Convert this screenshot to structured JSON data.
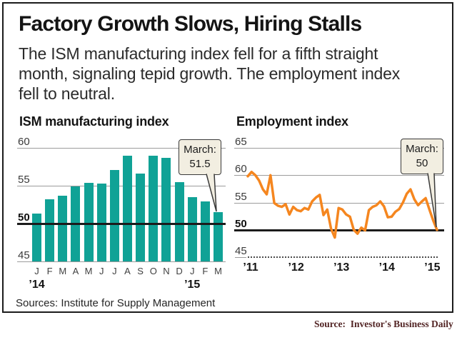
{
  "header": {
    "title": "Factory Growth Slows, Hiring Stalls",
    "subtitle": "The ISM manufacturing index fell for a fifth straight\nmonth, signaling tepid growth. The employment index\nfell to neutral."
  },
  "chart_data": [
    {
      "type": "bar",
      "title": "ISM manufacturing index",
      "categories": [
        "J",
        "F",
        "M",
        "A",
        "M",
        "J",
        "J",
        "A",
        "S",
        "O",
        "N",
        "D",
        "J",
        "F",
        "M"
      ],
      "category_years": [
        {
          "text": "’14",
          "month_index": 0
        },
        {
          "text": "’15",
          "month_index": 12
        }
      ],
      "values": [
        51.3,
        53.2,
        53.7,
        54.9,
        55.4,
        55.3,
        57.1,
        59.0,
        56.6,
        59.0,
        58.7,
        55.5,
        53.5,
        52.9,
        51.5
      ],
      "x_range": "Jan 2014 - Mar 2015",
      "ylim": [
        45,
        60
      ],
      "yticks": [
        60,
        55,
        50,
        45
      ],
      "bold_gridline": 50,
      "grid": "on",
      "annotation": {
        "label": "March:",
        "value": "51.5",
        "points_to": "Mar 2015 bar"
      },
      "color": "#10a296"
    },
    {
      "type": "line",
      "title": "Employment index",
      "x_year_ticks": [
        "’11",
        "’12",
        "’13",
        "’14",
        "’15"
      ],
      "x_range": "Jan 2011 - Mar 2015, monthly",
      "values": [
        59.8,
        60.6,
        60.0,
        59.0,
        57.4,
        56.5,
        60.0,
        54.9,
        54.4,
        54.2,
        54.7,
        52.8,
        54.2,
        53.6,
        53.4,
        54.0,
        53.7,
        55.2,
        55.9,
        56.4,
        52.7,
        53.7,
        50.2,
        48.6,
        54.0,
        53.7,
        52.8,
        52.4,
        50.0,
        49.3,
        50.4,
        49.9,
        53.6,
        54.2,
        54.5,
        55.2,
        54.3,
        52.3,
        52.4,
        53.3,
        53.8,
        55.0,
        56.6,
        57.4,
        55.6,
        54.5,
        55.2,
        55.8,
        53.7,
        51.7,
        50.0
      ],
      "ylim": [
        45,
        65
      ],
      "yticks": [
        65,
        60,
        55,
        50,
        45
      ],
      "bold_gridline": 50,
      "grid": "on",
      "annotation": {
        "label": "March:",
        "value": "50",
        "points_to": "Mar 2015 point"
      },
      "color": "#f5861f"
    }
  ],
  "footer": {
    "sources": "Sources: Institute for Supply Management",
    "credit": "Source:  Investor's Business Daily"
  },
  "colors": {
    "bar_teal": "#10a296",
    "line_orange": "#f5861f",
    "callout_bg": "#f2eee1",
    "bold_line": "#1b1b1b",
    "credit_text": "#522424"
  }
}
